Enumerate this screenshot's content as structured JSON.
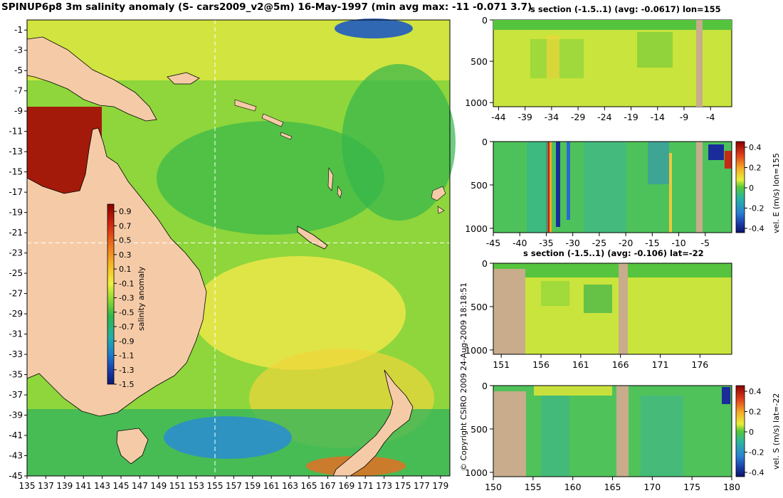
{
  "header": {
    "title": "SPINUP6p8 3m salinity anomaly (S- cars2009_v2@5m) 16-May-1997 (min avg max: -11 -0.071 3.7)"
  },
  "copyright": "© Copyright CSIRO 2009   24-Aug-2009 18:18:51",
  "colors": {
    "land": "#F5CBA7",
    "section_land": "#C8AC8C",
    "crosshair": "#ffffff"
  },
  "chart_data": [
    {
      "id": "map",
      "type": "heatmap",
      "title": "SPINUP6p8 3m salinity anomaly (S- cars2009_v2@5m) 16-May-1997 (min avg max: -11 -0.071 3.7)",
      "x_ticks": [
        135,
        137,
        139,
        141,
        143,
        145,
        147,
        149,
        151,
        153,
        155,
        157,
        159,
        161,
        163,
        165,
        167,
        169,
        171,
        173,
        175,
        177,
        179
      ],
      "y_ticks": [
        -1,
        -3,
        -5,
        -7,
        -9,
        -11,
        -13,
        -15,
        -17,
        -19,
        -21,
        -23,
        -25,
        -27,
        -29,
        -31,
        -33,
        -35,
        -37,
        -39,
        -41,
        -43,
        -45
      ],
      "xlim": [
        135,
        180
      ],
      "ylim": [
        -45,
        0
      ],
      "crosshair": {
        "lon": 155,
        "lat": -22
      },
      "colorbar": {
        "label": "salinity anomaly",
        "ticks": [
          "0.9",
          "0.7",
          "0.5",
          "0.3",
          "0.1",
          "-0.1",
          "-0.3",
          "-0.5",
          "-0.7",
          "-0.9",
          "-1.1",
          "-1.3",
          "-1.5"
        ],
        "range": [
          -1.5,
          1.0
        ]
      }
    },
    {
      "id": "section-1",
      "type": "heatmap",
      "title": "s section (-1.5..1) (avg: -0.0617) lon=155",
      "x_ticks": [
        "-44",
        "-39",
        "-34",
        "-29",
        "-24",
        "-19",
        "-14",
        "-9",
        "-4"
      ],
      "y_ticks": [
        "0",
        "500",
        "1000"
      ],
      "xlim": [
        -45,
        0
      ],
      "ylim": [
        1050,
        0
      ]
    },
    {
      "id": "section-2",
      "type": "heatmap",
      "title": "",
      "x_ticks": [
        "-45",
        "-40",
        "-35",
        "-30",
        "-25",
        "-20",
        "-15",
        "-10",
        "-5"
      ],
      "y_ticks": [
        "0",
        "500",
        "1000"
      ],
      "xlim": [
        -45,
        0
      ],
      "ylim": [
        1050,
        0
      ],
      "colorbar": {
        "label": "vel. E (m/s) lon=155",
        "ticks": [
          "0.4",
          "0.2",
          "0",
          "-0.2",
          "-0.4"
        ]
      }
    },
    {
      "id": "section-3",
      "type": "heatmap",
      "title": "s section (-1.5..1) (avg: -0.106) lat=-22",
      "x_ticks": [
        "151",
        "156",
        "161",
        "166",
        "171",
        "176"
      ],
      "y_ticks": [
        "0",
        "500",
        "1000"
      ],
      "xlim": [
        150,
        180
      ],
      "ylim": [
        1050,
        0
      ]
    },
    {
      "id": "section-4",
      "type": "heatmap",
      "title": "",
      "x_ticks": [
        "150",
        "155",
        "160",
        "165",
        "170",
        "175",
        "180"
      ],
      "y_ticks": [
        "0",
        "500",
        "1000"
      ],
      "xlim": [
        150,
        180
      ],
      "ylim": [
        1050,
        0
      ],
      "colorbar": {
        "label": "vel. S (m/s) lat=-22",
        "ticks": [
          "0.4",
          "0.2",
          "0",
          "-0.2",
          "-0.4"
        ]
      }
    }
  ]
}
